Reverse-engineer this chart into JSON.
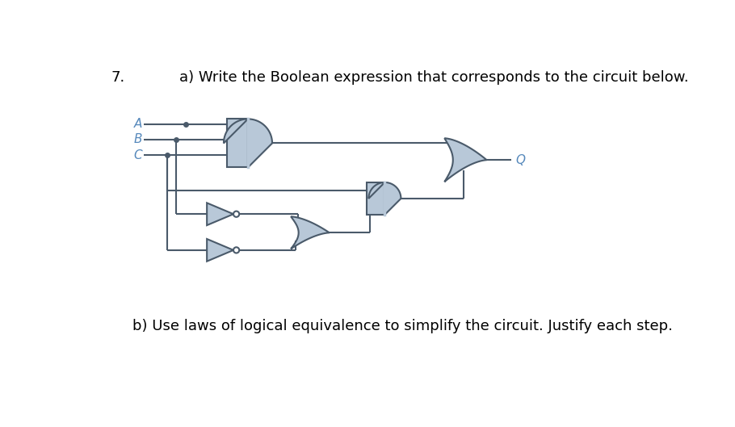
{
  "title_number": "7.",
  "title_a": "a) Write the Boolean expression that corresponds to the circuit below.",
  "title_b": "b) Use laws of logical equivalence to simplify the circuit. Justify each step.",
  "bg_color": "#ffffff",
  "gate_fill": "#b8c8d8",
  "gate_edge": "#4a5a6a",
  "line_color": "#4a5a6a",
  "label_color": "#5588bb",
  "text_color": "#000000",
  "font_size_title": 13,
  "font_size_question": 13,
  "font_size_label": 11
}
